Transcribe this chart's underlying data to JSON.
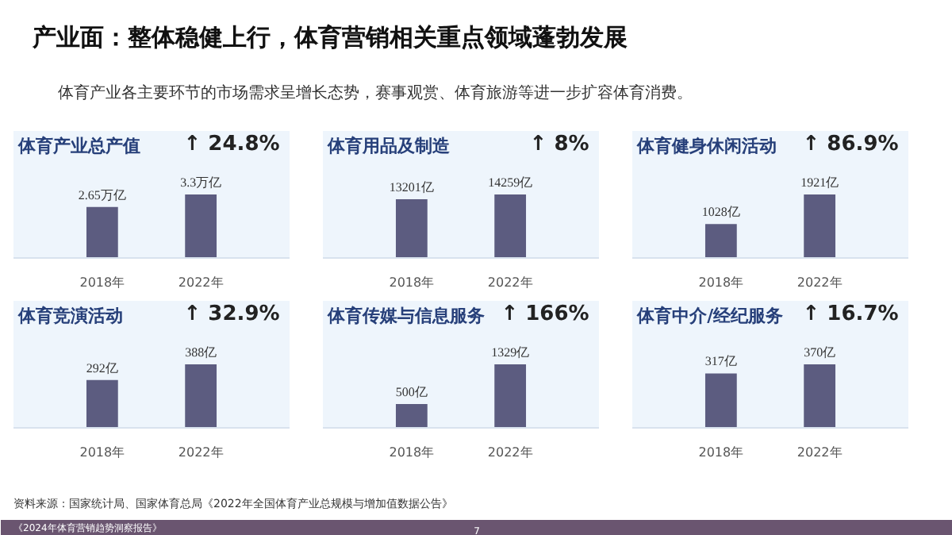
{
  "chart_data": [
    {
      "type": "other",
      "title": "产业面：整体稳健上行，体育营销相关重点领域蓬勃发展",
      "subtitle": "体育产业各主要环节的市场需求呈增长态势，赛事观赏、体育旅游等进一步扩容体育消费。",
      "annotations": [
        "资料来源：国家统计局、国家体育总局《2022年全国体育产业总规模与增加值数据公告》",
        "《2024年体育营销趋势洞察报告》",
        "7"
      ]
    },
    {
      "type": "bar",
      "title": "体育产业总产值",
      "annotations": [
        "↑ 24.8%"
      ],
      "categories": [
        "2018年",
        "2022年"
      ],
      "values": [
        2.65,
        3.3
      ],
      "value_labels": [
        "2.65万亿",
        "3.3万亿"
      ],
      "color": "#5c5c80",
      "tick_labels": "x"
    },
    {
      "type": "bar",
      "title": "体育用品及制造",
      "annotations": [
        "↑ 8%"
      ],
      "categories": [
        "2018年",
        "2022年"
      ],
      "values": [
        13201,
        14259
      ],
      "value_labels": [
        "13201亿",
        "14259亿"
      ],
      "color": "#5c5c80",
      "tick_labels": "x"
    },
    {
      "type": "bar",
      "title": "体育健身休闲活动",
      "annotations": [
        "↑ 86.9%"
      ],
      "categories": [
        "2018年",
        "2022年"
      ],
      "values": [
        1028,
        1921
      ],
      "value_labels": [
        "1028亿",
        "1921亿"
      ],
      "color": "#5c5c80",
      "tick_labels": "x"
    },
    {
      "type": "bar",
      "title": "体育竞演活动",
      "annotations": [
        "↑ 32.9%"
      ],
      "categories": [
        "2018年",
        "2022年"
      ],
      "values": [
        292,
        388
      ],
      "value_labels": [
        "292亿",
        "388亿"
      ],
      "color": "#5c5c80",
      "tick_labels": "x"
    },
    {
      "type": "bar",
      "title": "体育传媒与信息服务",
      "annotations": [
        "↑ 166%"
      ],
      "categories": [
        "2018年",
        "2022年"
      ],
      "values": [
        500,
        1329
      ],
      "value_labels": [
        "500亿",
        "1329亿"
      ],
      "color": "#5c5c80",
      "tick_labels": "x"
    },
    {
      "type": "bar",
      "title": "体育中介/经纪服务",
      "annotations": [
        "↑ 16.7%"
      ],
      "categories": [
        "2018年",
        "2022年"
      ],
      "values": [
        317,
        370
      ],
      "value_labels": [
        "317亿",
        "370亿"
      ],
      "color": "#5c5c80",
      "tick_labels": "x"
    }
  ]
}
